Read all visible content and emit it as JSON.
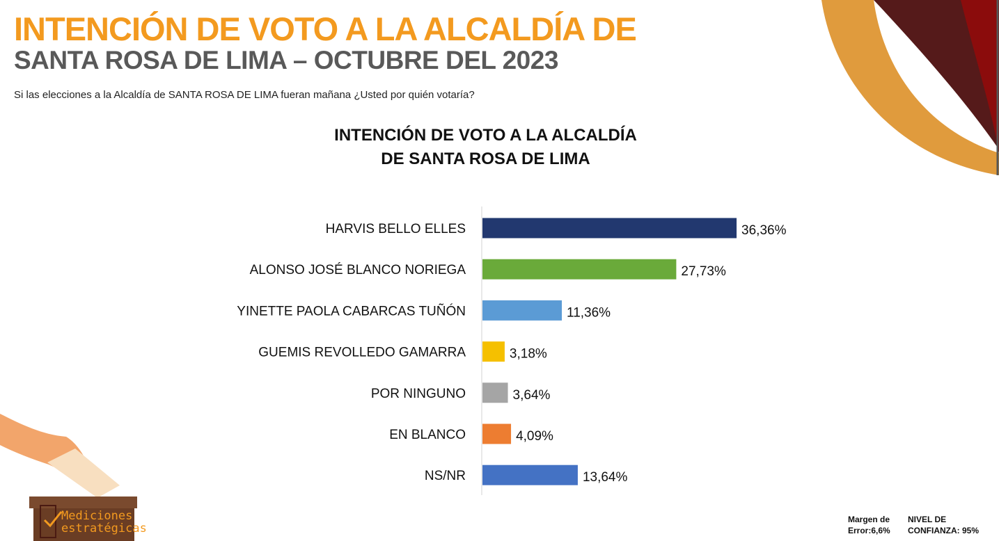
{
  "header": {
    "title_line1": "INTENCIÓN DE VOTO A LA ALCALDÍA DE",
    "title_line2": "SANTA ROSA DE LIMA – OCTUBRE DEL 2023",
    "question": "Si las elecciones a la  Alcaldía de SANTA ROSA DE LIMA fueran mañana ¿Usted por quién votaría?"
  },
  "chart_data": {
    "type": "bar",
    "orientation": "horizontal",
    "title_line1": "INTENCIÓN DE VOTO A LA ALCALDÍA",
    "title_line2": "DE SANTA ROSA DE LIMA",
    "categories": [
      "HARVIS BELLO ELLES",
      "ALONSO JOSÉ BLANCO NORIEGA",
      "YINETTE PAOLA CABARCAS TUÑÓN",
      "GUEMIS REVOLLEDO GAMARRA",
      "POR NINGUNO",
      "EN BLANCO",
      "NS/NR"
    ],
    "values": [
      36.36,
      27.73,
      11.36,
      3.18,
      3.64,
      4.09,
      13.64
    ],
    "labels": [
      "36,36%",
      "27,73%",
      "11,36%",
      "3,18%",
      "3,64%",
      "4,09%",
      "13,64%"
    ],
    "colors": [
      "#22386f",
      "#6aaa3a",
      "#5b9bd5",
      "#f5c000",
      "#a5a5a5",
      "#ed7d31",
      "#4472c4"
    ],
    "grid": false
  },
  "footer": {
    "margin_label": "Margen de",
    "margin_value": "Error:6,6%",
    "confidence_label": "NIVEL DE",
    "confidence_value": "CONFIANZA: 95%"
  },
  "logo": {
    "line1": "Mediciones",
    "line2": "estratégicas"
  }
}
